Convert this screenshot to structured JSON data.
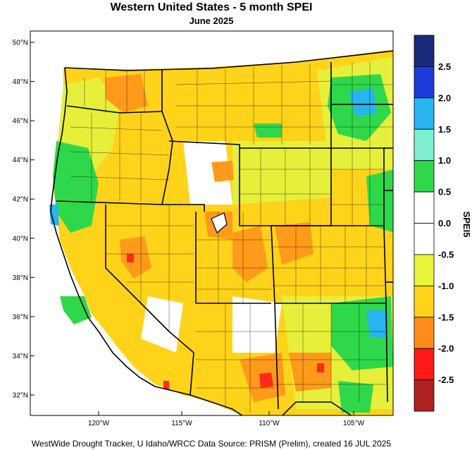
{
  "title": "Western United States - 5 month SPEI",
  "subtitle": "June 2025",
  "footer": "WestWide Drought Tracker, U Idaho/WRCC Data Source: PRISM (Prelim), created 16 JUL 2025",
  "lat_labels": [
    "32°N",
    "34°N",
    "36°N",
    "38°N",
    "40°N",
    "42°N",
    "44°N",
    "46°N",
    "48°N",
    "50°N"
  ],
  "lon_labels": [
    "120°W",
    "115°W",
    "110°W",
    "105°W"
  ],
  "colorbar": {
    "label": "SPEI5",
    "ticks": [
      "2.5",
      "2.0",
      "1.5",
      "1.0",
      "0.5",
      "0.0",
      "-0.5",
      "-1.0",
      "-1.5",
      "-2.0",
      "-2.5"
    ],
    "colors": [
      "#1a2a7a",
      "#1d3bd9",
      "#27b4ef",
      "#7ef0d0",
      "#2fd84a",
      "#ffffff",
      "#ffffff",
      "#e8f53a",
      "#ffd31a",
      "#ff8c1a",
      "#ff1a1a",
      "#b02222"
    ]
  },
  "colors": {
    "dry_light": "#e6ef3a",
    "dry_mod": "#ffcf1a",
    "dry_severe": "#ff9a1a",
    "dry_extreme": "#ff2a1a",
    "wet_light": "#2fd84a",
    "wet_mod": "#7ef0d0",
    "wet_strong": "#27b4ef"
  }
}
